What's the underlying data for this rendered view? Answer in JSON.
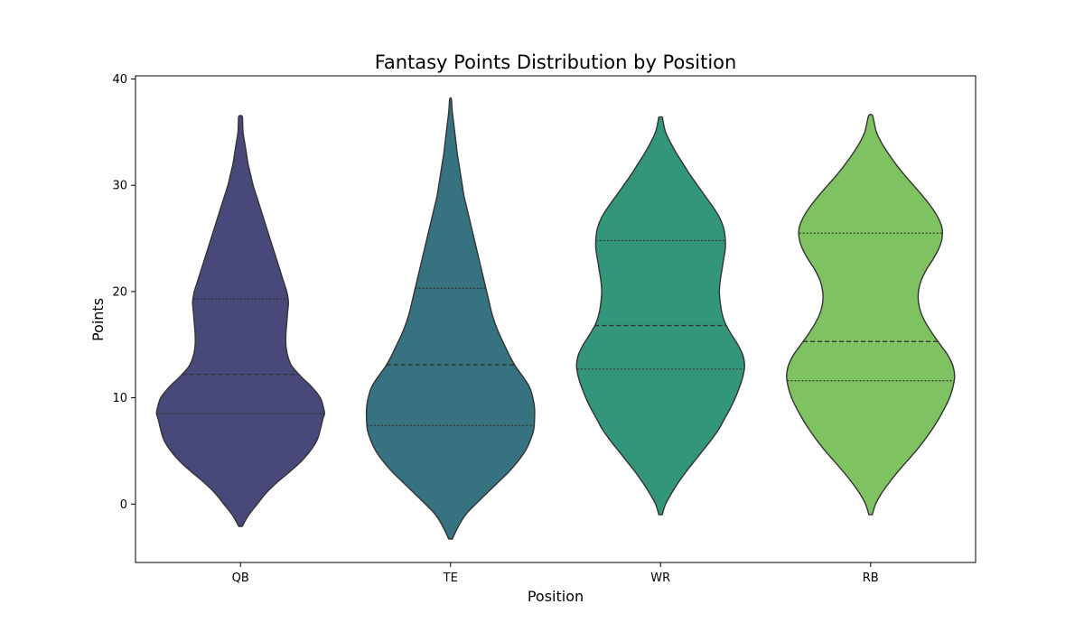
{
  "chart_data": {
    "type": "violin",
    "title": "Fantasy Points Distribution by Position",
    "xlabel": "Position",
    "ylabel": "Points",
    "ylim": [
      -5.5,
      40.3
    ],
    "yticks": [
      0,
      10,
      20,
      30,
      40
    ],
    "grid": false,
    "categories": [
      "QB",
      "TE",
      "WR",
      "RB"
    ],
    "series": [
      {
        "category": "QB",
        "color": "#48497a",
        "range": [
          -2.1,
          36.5
        ],
        "quartiles": {
          "q1": 8.5,
          "median": 12.2,
          "q3": 19.3
        },
        "density": [
          [
            -2.1,
            0.02
          ],
          [
            -1.0,
            0.1
          ],
          [
            0.0,
            0.2
          ],
          [
            1.0,
            0.3
          ],
          [
            2.0,
            0.43
          ],
          [
            3.0,
            0.58
          ],
          [
            4.0,
            0.72
          ],
          [
            5.0,
            0.83
          ],
          [
            6.0,
            0.91
          ],
          [
            7.0,
            0.95
          ],
          [
            8.0,
            0.98
          ],
          [
            8.5,
            1.0
          ],
          [
            9.0,
            0.99
          ],
          [
            10.0,
            0.95
          ],
          [
            11.0,
            0.85
          ],
          [
            12.0,
            0.72
          ],
          [
            13.0,
            0.61
          ],
          [
            14.0,
            0.56
          ],
          [
            15.0,
            0.54
          ],
          [
            16.0,
            0.54
          ],
          [
            17.0,
            0.55
          ],
          [
            18.0,
            0.56
          ],
          [
            19.0,
            0.57
          ],
          [
            20.0,
            0.55
          ],
          [
            21.0,
            0.51
          ],
          [
            22.0,
            0.47
          ],
          [
            23.0,
            0.43
          ],
          [
            24.0,
            0.39
          ],
          [
            25.0,
            0.35
          ],
          [
            26.0,
            0.31
          ],
          [
            27.0,
            0.27
          ],
          [
            28.0,
            0.23
          ],
          [
            29.0,
            0.19
          ],
          [
            30.0,
            0.15
          ],
          [
            31.0,
            0.12
          ],
          [
            32.0,
            0.09
          ],
          [
            33.0,
            0.07
          ],
          [
            34.0,
            0.05
          ],
          [
            35.0,
            0.03
          ],
          [
            36.0,
            0.025
          ],
          [
            36.5,
            0.02
          ]
        ]
      },
      {
        "category": "TE",
        "color": "#36727f",
        "range": [
          -3.3,
          38.1
        ],
        "quartiles": {
          "q1": 7.4,
          "median": 13.1,
          "q3": 20.3
        },
        "density": [
          [
            -3.3,
            0.02
          ],
          [
            -2.0,
            0.1
          ],
          [
            -1.0,
            0.18
          ],
          [
            0.0,
            0.3
          ],
          [
            1.0,
            0.43
          ],
          [
            2.0,
            0.56
          ],
          [
            3.0,
            0.69
          ],
          [
            4.0,
            0.8
          ],
          [
            5.0,
            0.89
          ],
          [
            6.0,
            0.95
          ],
          [
            7.0,
            0.99
          ],
          [
            8.0,
            1.0
          ],
          [
            9.0,
            1.0
          ],
          [
            10.0,
            0.98
          ],
          [
            11.0,
            0.94
          ],
          [
            12.0,
            0.86
          ],
          [
            13.0,
            0.77
          ],
          [
            14.0,
            0.7
          ],
          [
            15.0,
            0.64
          ],
          [
            16.0,
            0.58
          ],
          [
            17.0,
            0.53
          ],
          [
            18.0,
            0.49
          ],
          [
            19.0,
            0.46
          ],
          [
            20.0,
            0.43
          ],
          [
            21.0,
            0.4
          ],
          [
            22.0,
            0.37
          ],
          [
            23.0,
            0.34
          ],
          [
            24.0,
            0.31
          ],
          [
            25.0,
            0.28
          ],
          [
            26.0,
            0.25
          ],
          [
            27.0,
            0.22
          ],
          [
            28.0,
            0.19
          ],
          [
            29.0,
            0.16
          ],
          [
            30.0,
            0.14
          ],
          [
            31.0,
            0.12
          ],
          [
            32.0,
            0.1
          ],
          [
            33.0,
            0.08
          ],
          [
            34.0,
            0.065
          ],
          [
            35.0,
            0.05
          ],
          [
            36.0,
            0.035
          ],
          [
            37.0,
            0.02
          ],
          [
            38.1,
            0.01
          ]
        ]
      },
      {
        "category": "WR",
        "color": "#33967b",
        "range": [
          -1.0,
          36.4
        ],
        "quartiles": {
          "q1": 12.7,
          "median": 16.8,
          "q3": 24.8
        },
        "density": [
          [
            -1.0,
            0.02
          ],
          [
            0.0,
            0.06
          ],
          [
            1.0,
            0.13
          ],
          [
            2.0,
            0.21
          ],
          [
            3.0,
            0.3
          ],
          [
            4.0,
            0.4
          ],
          [
            5.0,
            0.5
          ],
          [
            6.0,
            0.6
          ],
          [
            7.0,
            0.69
          ],
          [
            8.0,
            0.76
          ],
          [
            9.0,
            0.83
          ],
          [
            10.0,
            0.89
          ],
          [
            11.0,
            0.94
          ],
          [
            12.0,
            0.98
          ],
          [
            13.0,
            1.0
          ],
          [
            14.0,
            0.98
          ],
          [
            15.0,
            0.92
          ],
          [
            16.0,
            0.84
          ],
          [
            17.0,
            0.77
          ],
          [
            18.0,
            0.73
          ],
          [
            19.0,
            0.71
          ],
          [
            20.0,
            0.7
          ],
          [
            21.0,
            0.71
          ],
          [
            22.0,
            0.73
          ],
          [
            23.0,
            0.75
          ],
          [
            24.0,
            0.77
          ],
          [
            25.0,
            0.77
          ],
          [
            26.0,
            0.75
          ],
          [
            27.0,
            0.7
          ],
          [
            28.0,
            0.62
          ],
          [
            29.0,
            0.53
          ],
          [
            30.0,
            0.44
          ],
          [
            31.0,
            0.35
          ],
          [
            32.0,
            0.27
          ],
          [
            33.0,
            0.19
          ],
          [
            34.0,
            0.12
          ],
          [
            35.0,
            0.06
          ],
          [
            36.0,
            0.03
          ],
          [
            36.4,
            0.02
          ]
        ]
      },
      {
        "category": "RB",
        "color": "#7fc262",
        "range": [
          -1.0,
          36.6
        ],
        "quartiles": {
          "q1": 11.6,
          "median": 15.3,
          "q3": 25.5
        },
        "density": [
          [
            -1.0,
            0.02
          ],
          [
            0.0,
            0.06
          ],
          [
            1.0,
            0.13
          ],
          [
            2.0,
            0.22
          ],
          [
            3.0,
            0.32
          ],
          [
            4.0,
            0.43
          ],
          [
            5.0,
            0.54
          ],
          [
            6.0,
            0.64
          ],
          [
            7.0,
            0.73
          ],
          [
            8.0,
            0.81
          ],
          [
            9.0,
            0.88
          ],
          [
            10.0,
            0.94
          ],
          [
            11.0,
            0.98
          ],
          [
            12.0,
            1.0
          ],
          [
            13.0,
            0.98
          ],
          [
            14.0,
            0.92
          ],
          [
            15.0,
            0.83
          ],
          [
            16.0,
            0.74
          ],
          [
            17.0,
            0.66
          ],
          [
            18.0,
            0.6
          ],
          [
            19.0,
            0.57
          ],
          [
            20.0,
            0.57
          ],
          [
            21.0,
            0.6
          ],
          [
            22.0,
            0.66
          ],
          [
            23.0,
            0.74
          ],
          [
            24.0,
            0.81
          ],
          [
            25.0,
            0.85
          ],
          [
            26.0,
            0.85
          ],
          [
            27.0,
            0.8
          ],
          [
            28.0,
            0.72
          ],
          [
            29.0,
            0.62
          ],
          [
            30.0,
            0.51
          ],
          [
            31.0,
            0.4
          ],
          [
            32.0,
            0.3
          ],
          [
            33.0,
            0.21
          ],
          [
            34.0,
            0.13
          ],
          [
            35.0,
            0.07
          ],
          [
            36.0,
            0.04
          ],
          [
            36.6,
            0.02
          ]
        ]
      }
    ]
  }
}
